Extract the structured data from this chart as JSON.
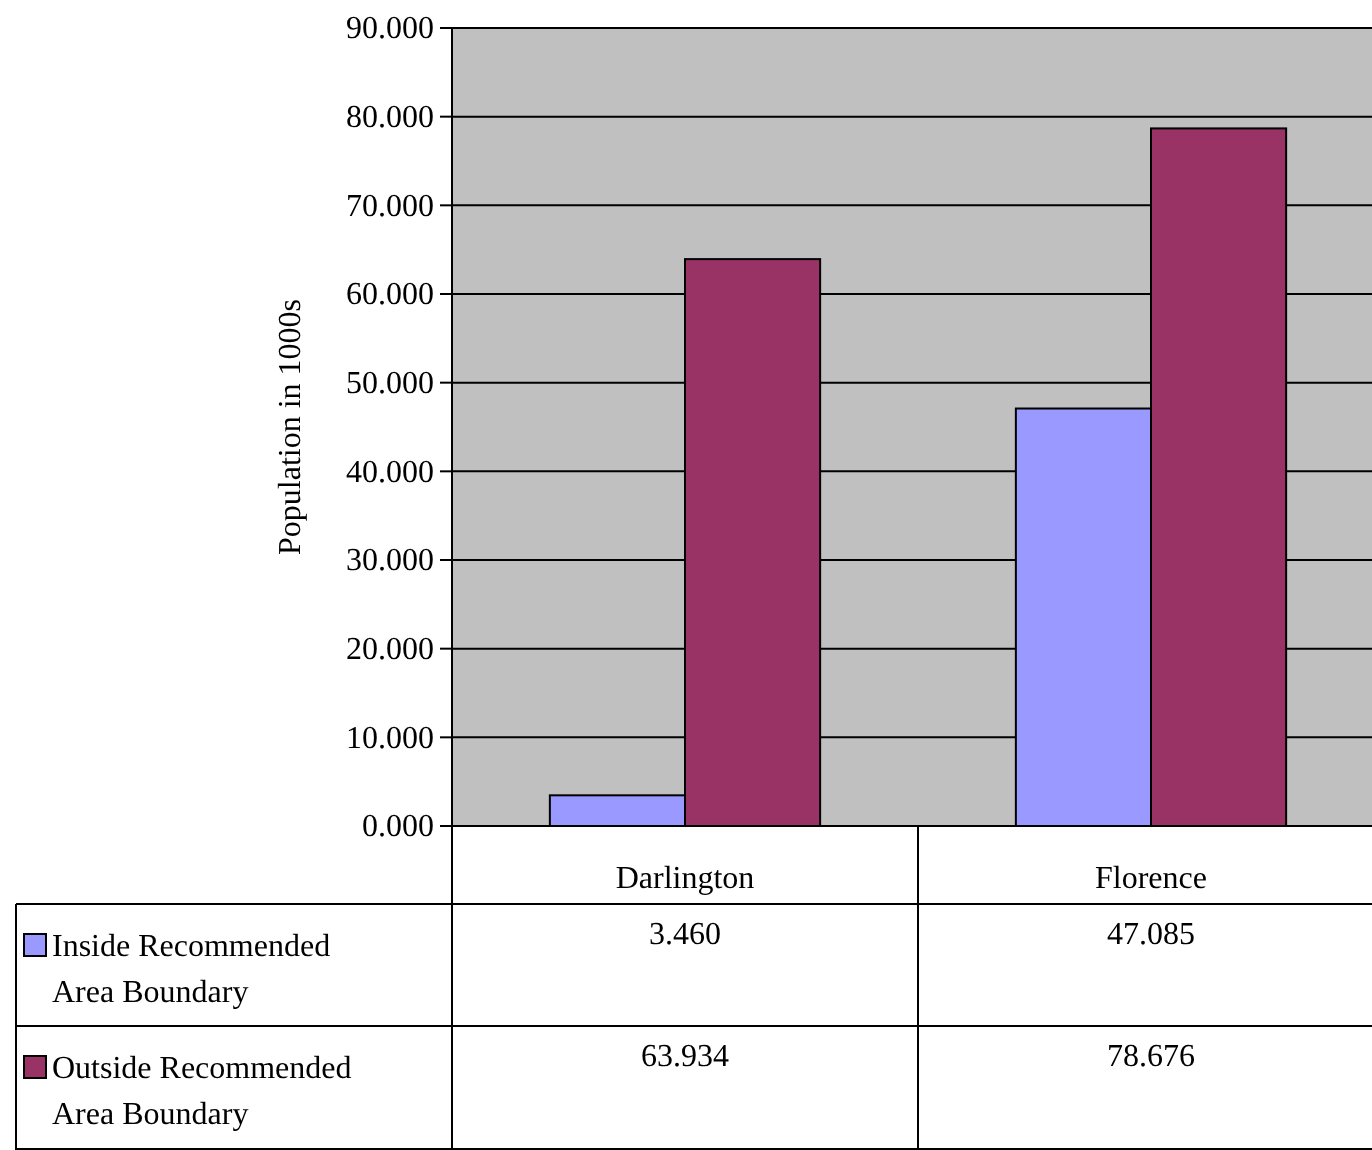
{
  "chart_data": {
    "type": "bar",
    "ylabel": "Population in 1000s",
    "categories": [
      "Darlington",
      "Florence"
    ],
    "series": [
      {
        "name": "Inside Recommended Area Boundary",
        "color": "#9999ff",
        "values": [
          3.46,
          47.085
        ],
        "value_labels": [
          "3.460",
          "47.085"
        ]
      },
      {
        "name": "Outside Recommended Area Boundary",
        "color": "#993366",
        "values": [
          63.934,
          78.676
        ],
        "value_labels": [
          "63.934",
          "78.676"
        ]
      }
    ],
    "ylim": [
      0,
      90
    ],
    "yticks": [
      {
        "value": 0,
        "label": "0.000"
      },
      {
        "value": 10,
        "label": "10.000"
      },
      {
        "value": 20,
        "label": "20.000"
      },
      {
        "value": 30,
        "label": "30.000"
      },
      {
        "value": 40,
        "label": "40.000"
      },
      {
        "value": 50,
        "label": "50.000"
      },
      {
        "value": 60,
        "label": "60.000"
      },
      {
        "value": 70,
        "label": "70.000"
      },
      {
        "value": 80,
        "label": "80.000"
      },
      {
        "value": 90,
        "label": "90.000"
      }
    ],
    "grid": "y",
    "legend": "bottom"
  }
}
